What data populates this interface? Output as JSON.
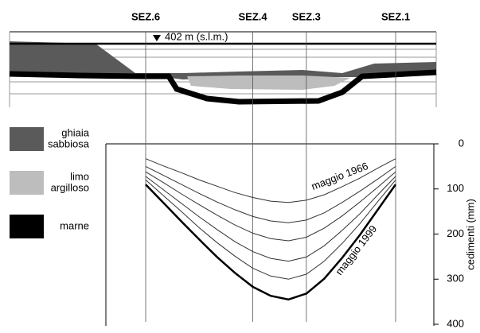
{
  "section": {
    "level_label": "402 m (s.l.m.)",
    "legend": [
      {
        "lines": [
          "ghiaia",
          "sabbiosa"
        ],
        "color": "#5a5a5a"
      },
      {
        "lines": [
          "limo",
          "argilloso"
        ],
        "color": "#bdbdbd"
      },
      {
        "lines": [
          "marne"
        ],
        "color": "#000000"
      }
    ]
  },
  "chart_data": {
    "type": "line",
    "categories": [
      "SEZ.6",
      null,
      null,
      null,
      null,
      null,
      "SEZ.4",
      null,
      null,
      "SEZ.3",
      null,
      null,
      null,
      null,
      "SEZ.1"
    ],
    "y_label": "cedimenti (mm)",
    "ylim": [
      0,
      400
    ],
    "yticks": [
      0,
      100,
      200,
      300,
      400
    ],
    "y_inverted": true,
    "series": [
      {
        "name": "maggio 1966",
        "color": "#333333",
        "values": [
          33,
          49,
          64,
          80,
          94,
          108,
          119,
          127,
          130,
          125,
          113,
          95,
          76,
          54,
          33
        ]
      },
      {
        "color": "#333333",
        "values": [
          50,
          70,
          90,
          110,
          129,
          146,
          161,
          171,
          175,
          169,
          153,
          130,
          105,
          78,
          50
        ]
      },
      {
        "color": "#333333",
        "values": [
          62,
          86,
          111,
          135,
          158,
          180,
          198,
          210,
          215,
          207,
          187,
          160,
          129,
          96,
          62
        ]
      },
      {
        "color": "#333333",
        "values": [
          72,
          102,
          132,
          162,
          190,
          217,
          239,
          254,
          260,
          251,
          226,
          192,
          155,
          113,
          72
        ]
      },
      {
        "color": "#333333",
        "values": [
          80,
          115,
          150,
          186,
          219,
          249,
          276,
          293,
          300,
          289,
          260,
          221,
          177,
          128,
          80
        ]
      },
      {
        "name": "maggio 1999",
        "color": "#000000",
        "values": [
          90,
          131,
          172,
          212,
          251,
          286,
          317,
          337,
          345,
          332,
          299,
          253,
          202,
          146,
          90
        ]
      }
    ]
  }
}
